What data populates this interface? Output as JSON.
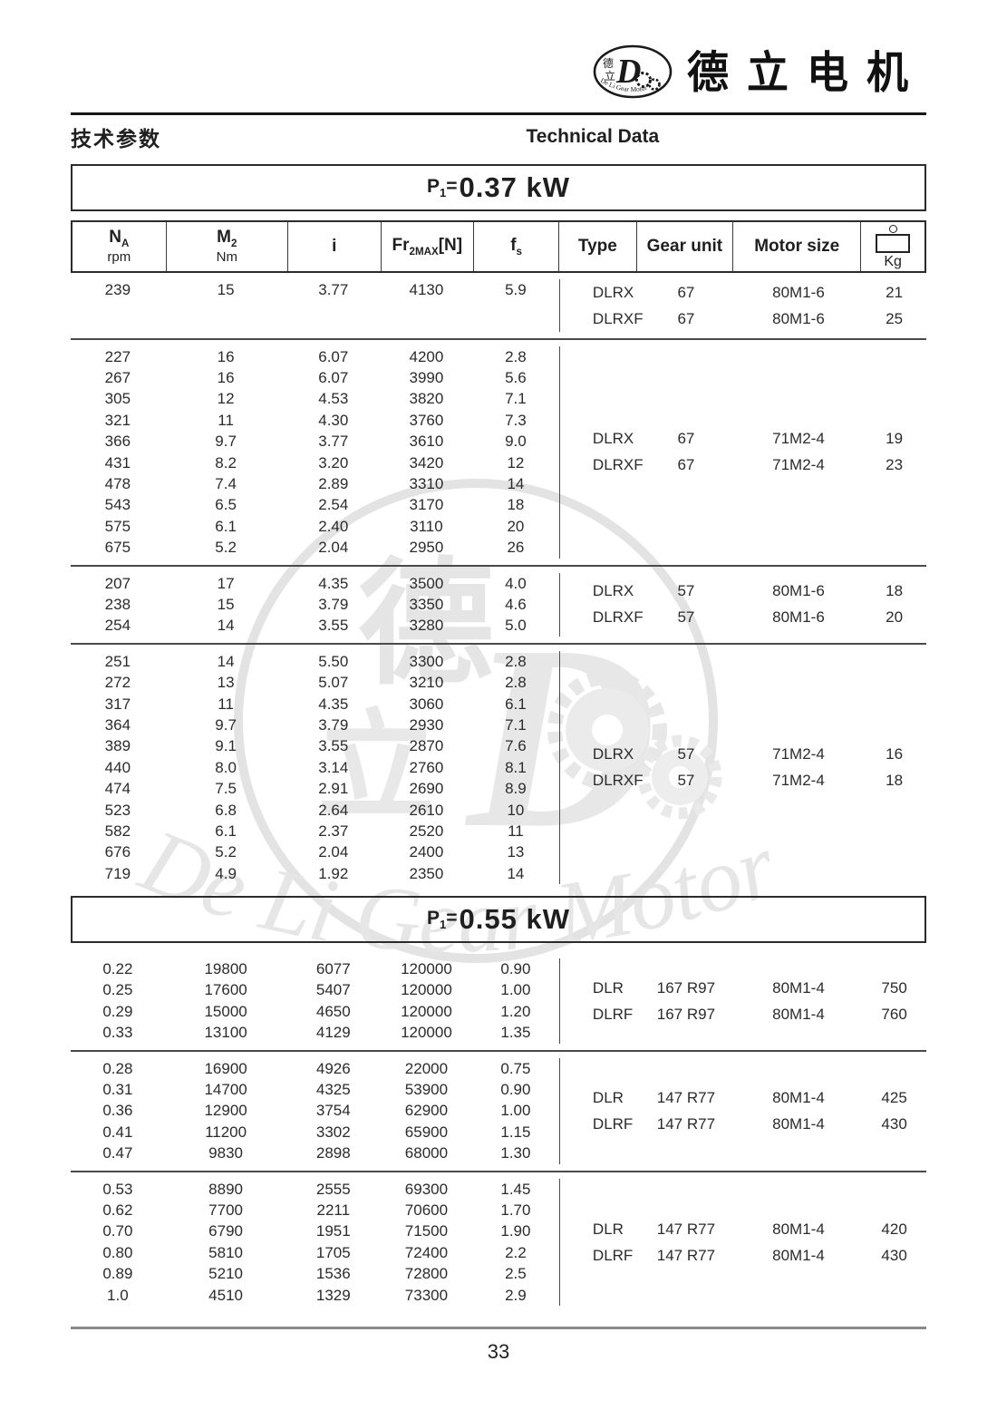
{
  "brand": {
    "name_cn": "德立电机",
    "logo_char_top": "德",
    "logo_char_bottom": "立",
    "logo_letter": "D",
    "logo_text_en": "De Li Gear Motor"
  },
  "page": {
    "title_cn": "技术参数",
    "title_en": "Technical Data",
    "page_number": "33"
  },
  "colors": {
    "rule_dark": "#161616",
    "rule_gray": "#8a8a8a",
    "separator": "#4a4a4a",
    "watermark": "#e6e6e6"
  },
  "table": {
    "columns": [
      {
        "main": "N",
        "sub": "A",
        "unit": "rpm"
      },
      {
        "main": "M",
        "sub": "2",
        "unit": "Nm"
      },
      {
        "main": "i"
      },
      {
        "main": "Fr",
        "sub": "2MAX",
        "tail": "[N]"
      },
      {
        "main": "f",
        "sub": "s"
      },
      {
        "main": "Type"
      },
      {
        "main": "Gear unit"
      },
      {
        "main": "Motor size"
      },
      {
        "main": "Kg",
        "icon": "weight-icon"
      }
    ]
  },
  "sections": [
    {
      "power_main": "P",
      "power_sub": "1",
      "power_eq": "=",
      "power_value": "0.37 kW",
      "show_header": true,
      "blocks": [
        {
          "rows": [
            [
              "239",
              "15",
              "3.77",
              "4130",
              "5.9"
            ]
          ],
          "types": [
            {
              "type": "DLRX",
              "gear": "67",
              "motor": "80M1-6",
              "kg": "21"
            },
            {
              "type": "DLRXF",
              "gear": "67",
              "motor": "80M1-6",
              "kg": "25"
            }
          ]
        },
        {
          "rows": [
            [
              "227",
              "16",
              "6.07",
              "4200",
              "2.8"
            ],
            [
              "267",
              "16",
              "6.07",
              "3990",
              "5.6"
            ],
            [
              "305",
              "12",
              "4.53",
              "3820",
              "7.1"
            ],
            [
              "321",
              "11",
              "4.30",
              "3760",
              "7.3"
            ],
            [
              "366",
              "9.7",
              "3.77",
              "3610",
              "9.0"
            ],
            [
              "431",
              "8.2",
              "3.20",
              "3420",
              "12"
            ],
            [
              "478",
              "7.4",
              "2.89",
              "3310",
              "14"
            ],
            [
              "543",
              "6.5",
              "2.54",
              "3170",
              "18"
            ],
            [
              "575",
              "6.1",
              "2.40",
              "3110",
              "20"
            ],
            [
              "675",
              "5.2",
              "2.04",
              "2950",
              "26"
            ]
          ],
          "types": [
            {
              "type": "DLRX",
              "gear": "67",
              "motor": "71M2-4",
              "kg": "19"
            },
            {
              "type": "DLRXF",
              "gear": "67",
              "motor": "71M2-4",
              "kg": "23"
            }
          ]
        },
        {
          "rows": [
            [
              "207",
              "17",
              "4.35",
              "3500",
              "4.0"
            ],
            [
              "238",
              "15",
              "3.79",
              "3350",
              "4.6"
            ],
            [
              "254",
              "14",
              "3.55",
              "3280",
              "5.0"
            ]
          ],
          "types": [
            {
              "type": "DLRX",
              "gear": "57",
              "motor": "80M1-6",
              "kg": "18"
            },
            {
              "type": "DLRXF",
              "gear": "57",
              "motor": "80M1-6",
              "kg": "20"
            }
          ]
        },
        {
          "rows": [
            [
              "251",
              "14",
              "5.50",
              "3300",
              "2.8"
            ],
            [
              "272",
              "13",
              "5.07",
              "3210",
              "2.8"
            ],
            [
              "317",
              "11",
              "4.35",
              "3060",
              "6.1"
            ],
            [
              "364",
              "9.7",
              "3.79",
              "2930",
              "7.1"
            ],
            [
              "389",
              "9.1",
              "3.55",
              "2870",
              "7.6"
            ],
            [
              "440",
              "8.0",
              "3.14",
              "2760",
              "8.1"
            ],
            [
              "474",
              "7.5",
              "2.91",
              "2690",
              "8.9"
            ],
            [
              "523",
              "6.8",
              "2.64",
              "2610",
              "10"
            ],
            [
              "582",
              "6.1",
              "2.37",
              "2520",
              "11"
            ],
            [
              "676",
              "5.2",
              "2.04",
              "2400",
              "13"
            ],
            [
              "719",
              "4.9",
              "1.92",
              "2350",
              "14"
            ]
          ],
          "types": [
            {
              "type": "DLRX",
              "gear": "57",
              "motor": "71M2-4",
              "kg": "16"
            },
            {
              "type": "DLRXF",
              "gear": "57",
              "motor": "71M2-4",
              "kg": "18"
            }
          ]
        }
      ]
    },
    {
      "power_main": "P",
      "power_sub": "1",
      "power_eq": "=",
      "power_value": "0.55 kW",
      "show_header": false,
      "blocks": [
        {
          "rows": [
            [
              "0.22",
              "19800",
              "6077",
              "120000",
              "0.90"
            ],
            [
              "0.25",
              "17600",
              "5407",
              "120000",
              "1.00"
            ],
            [
              "0.29",
              "15000",
              "4650",
              "120000",
              "1.20"
            ],
            [
              "0.33",
              "13100",
              "4129",
              "120000",
              "1.35"
            ]
          ],
          "types": [
            {
              "type": "DLR",
              "gear": "167 R97",
              "motor": "80M1-4",
              "kg": "750"
            },
            {
              "type": "DLRF",
              "gear": "167 R97",
              "motor": "80M1-4",
              "kg": "760"
            }
          ]
        },
        {
          "rows": [
            [
              "0.28",
              "16900",
              "4926",
              "22000",
              "0.75"
            ],
            [
              "0.31",
              "14700",
              "4325",
              "53900",
              "0.90"
            ],
            [
              "0.36",
              "12900",
              "3754",
              "62900",
              "1.00"
            ],
            [
              "0.41",
              "11200",
              "3302",
              "65900",
              "1.15"
            ],
            [
              "0.47",
              "9830",
              "2898",
              "68000",
              "1.30"
            ]
          ],
          "types": [
            {
              "type": "DLR",
              "gear": "147 R77",
              "motor": "80M1-4",
              "kg": "425"
            },
            {
              "type": "DLRF",
              "gear": "147 R77",
              "motor": "80M1-4",
              "kg": "430"
            }
          ]
        },
        {
          "rows": [
            [
              "0.53",
              "8890",
              "2555",
              "69300",
              "1.45"
            ],
            [
              "0.62",
              "7700",
              "2211",
              "70600",
              "1.70"
            ],
            [
              "0.70",
              "6790",
              "1951",
              "71500",
              "1.90"
            ],
            [
              "0.80",
              "5810",
              "1705",
              "72400",
              "2.2"
            ],
            [
              "0.89",
              "5210",
              "1536",
              "72800",
              "2.5"
            ],
            [
              "1.0",
              "4510",
              "1329",
              "73300",
              "2.9"
            ]
          ],
          "types": [
            {
              "type": "DLR",
              "gear": "147 R77",
              "motor": "80M1-4",
              "kg": "420"
            },
            {
              "type": "DLRF",
              "gear": "147 R77",
              "motor": "80M1-4",
              "kg": "430"
            }
          ]
        }
      ]
    }
  ],
  "watermark": {
    "char_top": "德",
    "char_bottom": "立",
    "letter": "D",
    "text_en": "De Li Gear Motor"
  }
}
